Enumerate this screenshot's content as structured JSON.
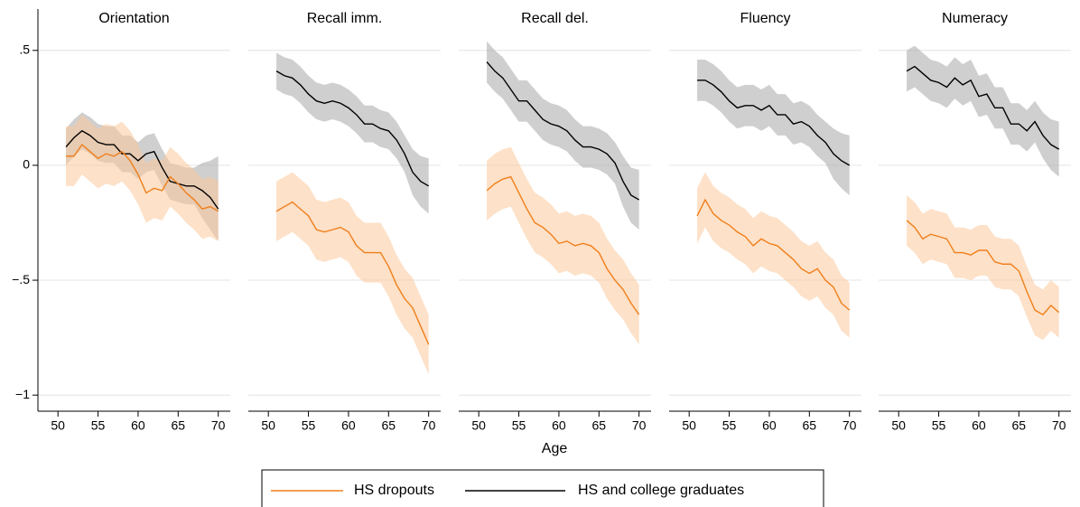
{
  "x_label": "Age",
  "chart_data": [
    {
      "type": "line",
      "title": "Orientation",
      "x": [
        51,
        52,
        53,
        54,
        55,
        56,
        57,
        58,
        59,
        60,
        61,
        62,
        63,
        64,
        65,
        66,
        67,
        68,
        69,
        70
      ],
      "xlim": [
        47.5,
        71.5
      ],
      "xticks": [
        50,
        55,
        60,
        65,
        70
      ],
      "ylim": [
        -1.07,
        0.68
      ],
      "yticks": [
        {
          "value": 0.5,
          "label": ".5"
        },
        0,
        {
          "value": -0.5,
          "label": "−.5"
        },
        {
          "value": -1,
          "label": "−1"
        }
      ],
      "grid": true,
      "series": [
        {
          "name": "HS and college graduates",
          "color": "#000000",
          "band_color": "#a8a8a8",
          "values": [
            0.08,
            0.12,
            0.15,
            0.13,
            0.1,
            0.09,
            0.09,
            0.05,
            0.05,
            0.02,
            0.05,
            0.06,
            -0.01,
            -0.07,
            -0.08,
            -0.09,
            -0.09,
            -0.11,
            -0.14,
            -0.19
          ],
          "upper": [
            0.16,
            0.2,
            0.23,
            0.21,
            0.18,
            0.17,
            0.17,
            0.13,
            0.13,
            0.1,
            0.13,
            0.14,
            0.07,
            0.01,
            0,
            -0.01,
            -0.01,
            0.01,
            0.02,
            0.04
          ],
          "lower": [
            0,
            0.04,
            0.07,
            0.05,
            0.02,
            0.01,
            0.01,
            -0.03,
            -0.03,
            -0.06,
            -0.03,
            -0.02,
            -0.09,
            -0.15,
            -0.16,
            -0.17,
            -0.17,
            -0.23,
            -0.28,
            -0.33
          ]
        },
        {
          "name": "HS dropouts",
          "color": "#f07f1b",
          "band_color": "#fcc99a",
          "values": [
            0.04,
            0.04,
            0.09,
            0.06,
            0.03,
            0.05,
            0.04,
            0.06,
            0.02,
            -0.04,
            -0.12,
            -0.1,
            -0.11,
            -0.05,
            -0.08,
            -0.12,
            -0.15,
            -0.19,
            -0.18,
            -0.2
          ],
          "upper": [
            0.17,
            0.17,
            0.22,
            0.19,
            0.16,
            0.18,
            0.17,
            0.19,
            0.15,
            0.09,
            0.01,
            0.03,
            0.02,
            0.08,
            0.05,
            0.01,
            -0.02,
            -0.06,
            -0.05,
            -0.07
          ],
          "lower": [
            -0.09,
            -0.09,
            -0.04,
            -0.07,
            -0.1,
            -0.08,
            -0.09,
            -0.07,
            -0.11,
            -0.17,
            -0.25,
            -0.23,
            -0.24,
            -0.18,
            -0.21,
            -0.25,
            -0.28,
            -0.32,
            -0.31,
            -0.33
          ]
        }
      ]
    },
    {
      "type": "line",
      "title": "Recall imm.",
      "x": [
        51,
        52,
        53,
        54,
        55,
        56,
        57,
        58,
        59,
        60,
        61,
        62,
        63,
        64,
        65,
        66,
        67,
        68,
        69,
        70
      ],
      "xlim": [
        47.5,
        71.5
      ],
      "xticks": [
        50,
        55,
        60,
        65,
        70
      ],
      "ylim": [
        -1.07,
        0.68
      ],
      "grid": true,
      "series": [
        {
          "color": "#000000",
          "band_color": "#a8a8a8",
          "values": [
            0.41,
            0.39,
            0.38,
            0.35,
            0.31,
            0.28,
            0.27,
            0.28,
            0.27,
            0.25,
            0.22,
            0.18,
            0.18,
            0.16,
            0.15,
            0.11,
            0.05,
            -0.03,
            -0.07,
            -0.09
          ],
          "upper": [
            0.49,
            0.47,
            0.46,
            0.43,
            0.39,
            0.36,
            0.35,
            0.36,
            0.35,
            0.33,
            0.3,
            0.26,
            0.26,
            0.24,
            0.23,
            0.19,
            0.13,
            0.07,
            0.04,
            0.03
          ],
          "lower": [
            0.33,
            0.31,
            0.3,
            0.27,
            0.23,
            0.2,
            0.19,
            0.2,
            0.19,
            0.17,
            0.14,
            0.1,
            0.1,
            0.08,
            0.07,
            0.03,
            -0.03,
            -0.13,
            -0.18,
            -0.21
          ]
        },
        {
          "color": "#f07f1b",
          "band_color": "#fcc99a",
          "values": [
            -0.2,
            -0.18,
            -0.16,
            -0.19,
            -0.22,
            -0.28,
            -0.29,
            -0.28,
            -0.27,
            -0.29,
            -0.35,
            -0.38,
            -0.38,
            -0.38,
            -0.44,
            -0.52,
            -0.58,
            -0.62,
            -0.7,
            -0.78
          ],
          "upper": [
            -0.07,
            -0.05,
            -0.03,
            -0.06,
            -0.09,
            -0.15,
            -0.16,
            -0.15,
            -0.14,
            -0.16,
            -0.22,
            -0.25,
            -0.25,
            -0.25,
            -0.31,
            -0.39,
            -0.45,
            -0.49,
            -0.57,
            -0.65
          ],
          "lower": [
            -0.33,
            -0.31,
            -0.29,
            -0.32,
            -0.35,
            -0.41,
            -0.42,
            -0.41,
            -0.4,
            -0.42,
            -0.48,
            -0.51,
            -0.51,
            -0.51,
            -0.57,
            -0.65,
            -0.71,
            -0.75,
            -0.83,
            -0.91
          ]
        }
      ]
    },
    {
      "type": "line",
      "title": "Recall del.",
      "x": [
        51,
        52,
        53,
        54,
        55,
        56,
        57,
        58,
        59,
        60,
        61,
        62,
        63,
        64,
        65,
        66,
        67,
        68,
        69,
        70
      ],
      "xlim": [
        47.5,
        71.5
      ],
      "xticks": [
        50,
        55,
        60,
        65,
        70
      ],
      "ylim": [
        -1.07,
        0.68
      ],
      "grid": true,
      "series": [
        {
          "color": "#000000",
          "band_color": "#a8a8a8",
          "values": [
            0.45,
            0.41,
            0.38,
            0.33,
            0.28,
            0.28,
            0.24,
            0.2,
            0.18,
            0.17,
            0.15,
            0.11,
            0.08,
            0.08,
            0.07,
            0.05,
            0.01,
            -0.07,
            -0.13,
            -0.15
          ],
          "upper": [
            0.54,
            0.5,
            0.47,
            0.42,
            0.37,
            0.37,
            0.33,
            0.29,
            0.27,
            0.26,
            0.24,
            0.2,
            0.17,
            0.17,
            0.16,
            0.14,
            0.1,
            0.04,
            -0.01,
            -0.02
          ],
          "lower": [
            0.36,
            0.32,
            0.29,
            0.24,
            0.19,
            0.19,
            0.15,
            0.11,
            0.09,
            0.08,
            0.06,
            0.02,
            -0.01,
            -0.01,
            -0.02,
            -0.04,
            -0.08,
            -0.18,
            -0.25,
            -0.28
          ]
        },
        {
          "color": "#f07f1b",
          "band_color": "#fcc99a",
          "values": [
            -0.11,
            -0.08,
            -0.06,
            -0.05,
            -0.12,
            -0.19,
            -0.25,
            -0.27,
            -0.3,
            -0.34,
            -0.33,
            -0.35,
            -0.34,
            -0.35,
            -0.38,
            -0.45,
            -0.5,
            -0.54,
            -0.6,
            -0.65
          ],
          "upper": [
            0.02,
            0.05,
            0.07,
            0.08,
            0.01,
            -0.06,
            -0.12,
            -0.14,
            -0.17,
            -0.21,
            -0.2,
            -0.22,
            -0.21,
            -0.22,
            -0.25,
            -0.32,
            -0.37,
            -0.41,
            -0.47,
            -0.52
          ],
          "lower": [
            -0.24,
            -0.21,
            -0.19,
            -0.18,
            -0.25,
            -0.32,
            -0.38,
            -0.4,
            -0.43,
            -0.47,
            -0.46,
            -0.48,
            -0.47,
            -0.48,
            -0.51,
            -0.58,
            -0.63,
            -0.67,
            -0.73,
            -0.78
          ]
        }
      ]
    },
    {
      "type": "line",
      "title": "Fluency",
      "x": [
        51,
        52,
        53,
        54,
        55,
        56,
        57,
        58,
        59,
        60,
        61,
        62,
        63,
        64,
        65,
        66,
        67,
        68,
        69,
        70
      ],
      "xlim": [
        47.5,
        71.5
      ],
      "xticks": [
        50,
        55,
        60,
        65,
        70
      ],
      "ylim": [
        -1.07,
        0.68
      ],
      "grid": true,
      "series": [
        {
          "color": "#000000",
          "band_color": "#a8a8a8",
          "values": [
            0.37,
            0.37,
            0.35,
            0.32,
            0.28,
            0.25,
            0.26,
            0.26,
            0.24,
            0.26,
            0.22,
            0.22,
            0.18,
            0.19,
            0.17,
            0.13,
            0.1,
            0.05,
            0.02,
            0
          ],
          "upper": [
            0.46,
            0.46,
            0.44,
            0.41,
            0.37,
            0.34,
            0.35,
            0.35,
            0.33,
            0.35,
            0.31,
            0.31,
            0.27,
            0.28,
            0.26,
            0.22,
            0.19,
            0.16,
            0.14,
            0.13
          ],
          "lower": [
            0.28,
            0.28,
            0.26,
            0.23,
            0.19,
            0.16,
            0.17,
            0.17,
            0.15,
            0.17,
            0.13,
            0.13,
            0.09,
            0.1,
            0.08,
            0.04,
            0.01,
            -0.06,
            -0.1,
            -0.13
          ]
        },
        {
          "color": "#f07f1b",
          "band_color": "#fcc99a",
          "values": [
            -0.22,
            -0.15,
            -0.21,
            -0.24,
            -0.26,
            -0.29,
            -0.31,
            -0.35,
            -0.32,
            -0.34,
            -0.35,
            -0.38,
            -0.41,
            -0.45,
            -0.47,
            -0.45,
            -0.5,
            -0.53,
            -0.6,
            -0.63
          ],
          "upper": [
            -0.1,
            -0.03,
            -0.09,
            -0.12,
            -0.14,
            -0.17,
            -0.19,
            -0.23,
            -0.2,
            -0.22,
            -0.23,
            -0.26,
            -0.29,
            -0.33,
            -0.35,
            -0.33,
            -0.38,
            -0.41,
            -0.48,
            -0.51
          ],
          "lower": [
            -0.34,
            -0.27,
            -0.33,
            -0.36,
            -0.38,
            -0.41,
            -0.43,
            -0.47,
            -0.44,
            -0.46,
            -0.47,
            -0.5,
            -0.53,
            -0.57,
            -0.59,
            -0.57,
            -0.62,
            -0.65,
            -0.72,
            -0.75
          ]
        }
      ]
    },
    {
      "type": "line",
      "title": "Numeracy",
      "x": [
        51,
        52,
        53,
        54,
        55,
        56,
        57,
        58,
        59,
        60,
        61,
        62,
        63,
        64,
        65,
        66,
        67,
        68,
        69,
        70
      ],
      "xlim": [
        47.5,
        71.5
      ],
      "xticks": [
        50,
        55,
        60,
        65,
        70
      ],
      "ylim": [
        -1.07,
        0.68
      ],
      "grid": true,
      "series": [
        {
          "color": "#000000",
          "band_color": "#a8a8a8",
          "values": [
            0.41,
            0.43,
            0.4,
            0.37,
            0.36,
            0.34,
            0.38,
            0.35,
            0.37,
            0.3,
            0.31,
            0.25,
            0.25,
            0.18,
            0.18,
            0.15,
            0.19,
            0.13,
            0.09,
            0.07
          ],
          "upper": [
            0.5,
            0.52,
            0.49,
            0.46,
            0.45,
            0.43,
            0.47,
            0.44,
            0.46,
            0.39,
            0.4,
            0.34,
            0.34,
            0.27,
            0.27,
            0.24,
            0.28,
            0.23,
            0.2,
            0.19
          ],
          "lower": [
            0.32,
            0.34,
            0.31,
            0.28,
            0.27,
            0.25,
            0.29,
            0.26,
            0.28,
            0.21,
            0.22,
            0.16,
            0.16,
            0.09,
            0.09,
            0.06,
            0.1,
            0.03,
            -0.02,
            -0.05
          ]
        },
        {
          "color": "#f07f1b",
          "band_color": "#fcc99a",
          "values": [
            -0.24,
            -0.27,
            -0.32,
            -0.3,
            -0.31,
            -0.32,
            -0.38,
            -0.38,
            -0.39,
            -0.37,
            -0.37,
            -0.42,
            -0.43,
            -0.43,
            -0.46,
            -0.55,
            -0.63,
            -0.65,
            -0.61,
            -0.64
          ],
          "upper": [
            -0.13,
            -0.16,
            -0.21,
            -0.19,
            -0.2,
            -0.21,
            -0.27,
            -0.27,
            -0.28,
            -0.26,
            -0.26,
            -0.31,
            -0.32,
            -0.32,
            -0.35,
            -0.44,
            -0.52,
            -0.54,
            -0.5,
            -0.53
          ],
          "lower": [
            -0.35,
            -0.38,
            -0.43,
            -0.41,
            -0.42,
            -0.43,
            -0.49,
            -0.49,
            -0.5,
            -0.48,
            -0.48,
            -0.53,
            -0.54,
            -0.54,
            -0.57,
            -0.66,
            -0.74,
            -0.76,
            -0.72,
            -0.75
          ]
        }
      ]
    }
  ]
}
